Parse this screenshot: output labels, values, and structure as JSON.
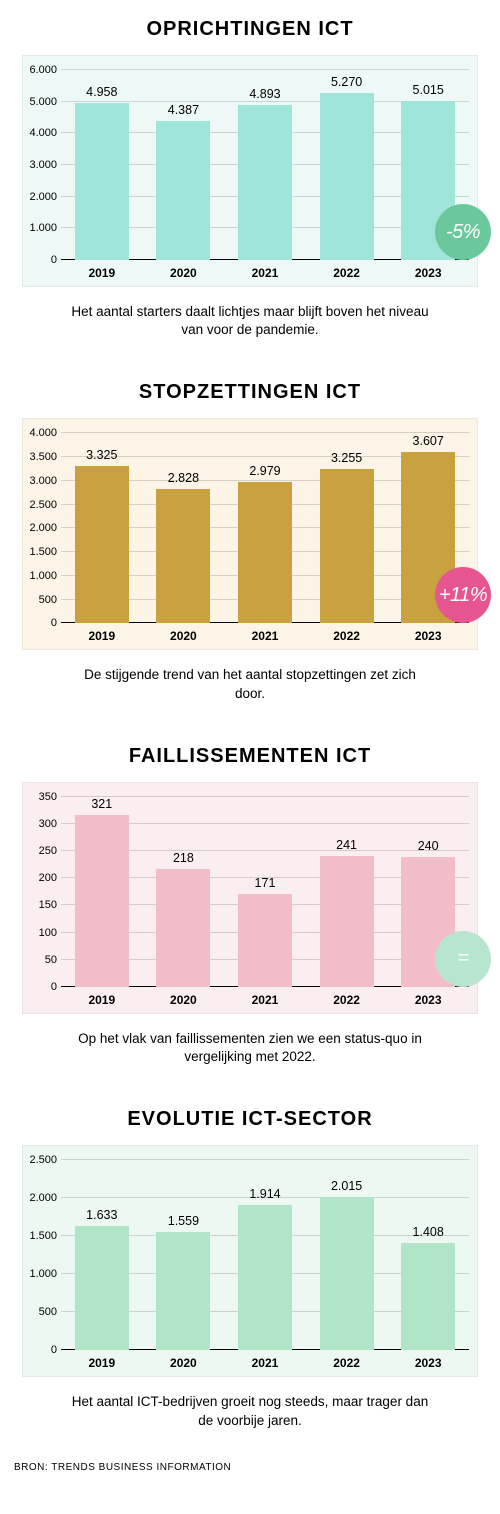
{
  "source": "BRON: TRENDS BUSINESS INFORMATION",
  "charts": [
    {
      "title": "OPRICHTINGEN ICT",
      "background_color": "#eef9f7",
      "bar_color": "#9fe5da",
      "categories": [
        "2019",
        "2020",
        "2021",
        "2022",
        "2023"
      ],
      "values": [
        4958,
        4387,
        4893,
        5270,
        5015
      ],
      "value_labels": [
        "4.958",
        "4.387",
        "4.893",
        "5.270",
        "5.015"
      ],
      "ymax": 6000,
      "ytick_step": 1000,
      "ytick_labels": [
        "0",
        "1.000",
        "2.000",
        "3.000",
        "4.000",
        "5.000",
        "6.000"
      ],
      "badge_text": "-5%",
      "badge_color": "#6bc89a",
      "caption": "Het aantal starters daalt lichtjes maar blijft boven het niveau van voor de pandemie."
    },
    {
      "title": "STOPZETTINGEN ICT",
      "background_color": "#fbf4e7",
      "bar_color": "#c9a23f",
      "categories": [
        "2019",
        "2020",
        "2021",
        "2022",
        "2023"
      ],
      "values": [
        3325,
        2828,
        2979,
        3255,
        3607
      ],
      "value_labels": [
        "3.325",
        "2.828",
        "2.979",
        "3.255",
        "3.607"
      ],
      "ymax": 4000,
      "ytick_step": 500,
      "ytick_labels": [
        "0",
        "500",
        "1.000",
        "1.500",
        "2.000",
        "2.500",
        "3.000",
        "3.500",
        "4.000"
      ],
      "badge_text": "+11%",
      "badge_color": "#e6558f",
      "caption": "De stijgende trend van het aantal stopzettingen zet zich door."
    },
    {
      "title": "FAILLISSEMENTEN ICT",
      "background_color": "#fbeef0",
      "bar_color": "#f3bdc7",
      "categories": [
        "2019",
        "2020",
        "2021",
        "2022",
        "2023"
      ],
      "values": [
        321,
        218,
        171,
        241,
        240
      ],
      "value_labels": [
        "321",
        "218",
        "171",
        "241",
        "240"
      ],
      "ymax": 350,
      "ytick_step": 50,
      "ytick_labels": [
        "0",
        "50",
        "100",
        "150",
        "200",
        "250",
        "300",
        "350"
      ],
      "badge_text": "=",
      "badge_color": "#b8e5ce",
      "caption": "Op het vlak van faillissementen zien we een status-quo in vergelijking met 2022."
    },
    {
      "title": "EVOLUTIE ICT-SECTOR",
      "background_color": "#eef8f2",
      "bar_color": "#b1e5c8",
      "categories": [
        "2019",
        "2020",
        "2021",
        "2022",
        "2023"
      ],
      "values": [
        1633,
        1559,
        1914,
        2015,
        1408
      ],
      "value_labels": [
        "1.633",
        "1.559",
        "1.914",
        "2.015",
        "1.408"
      ],
      "ymax": 2500,
      "ytick_step": 500,
      "ytick_labels": [
        "0",
        "500",
        "1.000",
        "1.500",
        "2.000",
        "2.500"
      ],
      "badge_text": "",
      "badge_color": "",
      "caption": "Het aantal ICT-bedrijven groeit nog steeds, maar trager dan de voorbije jaren."
    }
  ]
}
